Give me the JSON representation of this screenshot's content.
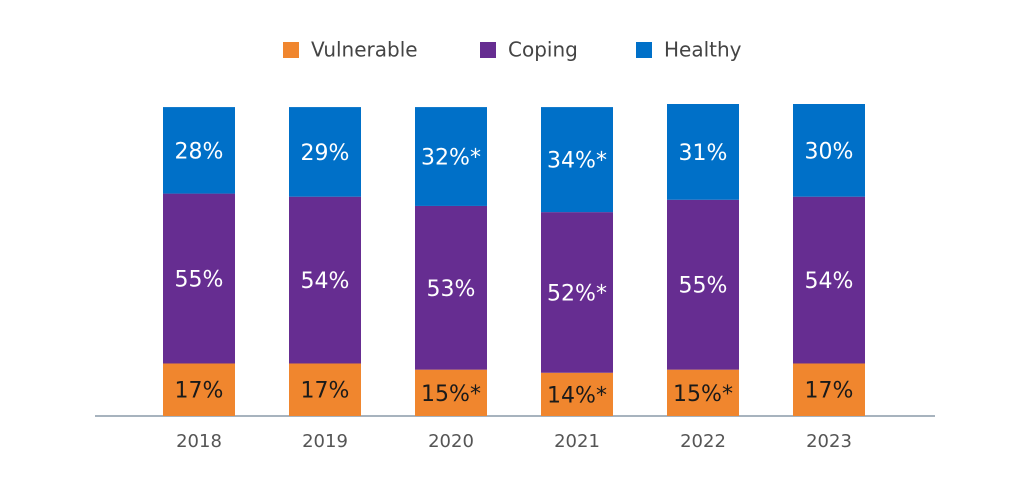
{
  "chart_data": {
    "type": "stacked-bar",
    "categories": [
      "2018",
      "2019",
      "2020",
      "2021",
      "2022",
      "2023"
    ],
    "series": [
      {
        "name": "Vulnerable",
        "color": "#f0862e",
        "label_color": "#1a1a1a",
        "values": [
          17,
          17,
          15,
          14,
          15,
          17
        ],
        "value_labels": [
          "17%",
          "17%",
          "15%*",
          "14%*",
          "15%*",
          "17%"
        ]
      },
      {
        "name": "Coping",
        "color": "#662d91",
        "label_color": "#ffffff",
        "values": [
          55,
          54,
          53,
          52,
          55,
          54
        ],
        "value_labels": [
          "55%",
          "54%",
          "53%",
          "52%*",
          "55%",
          "54%"
        ]
      },
      {
        "name": "Healthy",
        "color": "#0070c8",
        "label_color": "#ffffff",
        "values": [
          28,
          29,
          32,
          34,
          31,
          30
        ],
        "value_labels": [
          "28%",
          "29%",
          "32%*",
          "34%*",
          "31%",
          "30%"
        ]
      }
    ],
    "ylim": [
      0,
      101
    ],
    "legend": "top"
  }
}
